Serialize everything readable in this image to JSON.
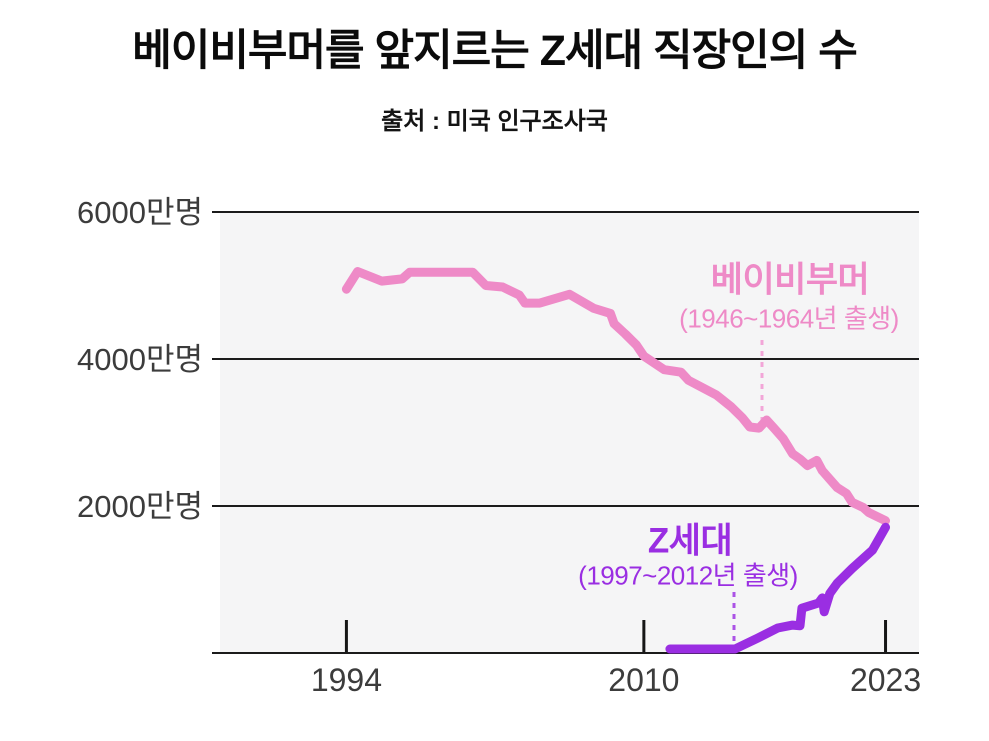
{
  "page": {
    "title": "베이비부머를 앞지르는 Z세대 직장인의 수",
    "source": "출처 : 미국 인구조사국"
  },
  "chart_data": {
    "type": "line",
    "title": "베이비부머를 앞지르는 Z세대 직장인의 수",
    "source": "출처 : 미국 인구조사국",
    "unit": "만명",
    "grid": true,
    "legend_position": "inline-annotations",
    "colors": {
      "page_background": "#ffffff",
      "plot_background": "#f5f5f6",
      "grid_line": "#1b1b1b",
      "axis_text": "#3c3c3c",
      "title_text": "#0b0b0b"
    },
    "x_axis": {
      "range": [
        1987.2,
        2024.8
      ],
      "ticks": [
        1994,
        2010,
        2023
      ],
      "tick_labels": [
        "1994",
        "2010",
        "2023"
      ]
    },
    "y_axis": {
      "range": [
        0,
        6000
      ],
      "ticks": [
        2000,
        4000,
        6000
      ],
      "tick_labels": [
        "2000만명",
        "4000만명",
        "6000만명"
      ]
    },
    "series": [
      {
        "key": "boomer",
        "name": "베이비부머",
        "birth_years": "(1946~1964년 출생)",
        "color": "#ee8ac7",
        "pointer_color": "#f2a6d8",
        "points": [
          [
            1994.0,
            4950
          ],
          [
            1994.6,
            5190
          ],
          [
            1995.9,
            5060
          ],
          [
            1997.0,
            5090
          ],
          [
            1997.4,
            5180
          ],
          [
            2000.8,
            5180
          ],
          [
            2001.5,
            5000
          ],
          [
            2002.4,
            4980
          ],
          [
            2003.3,
            4870
          ],
          [
            2003.6,
            4760
          ],
          [
            2004.4,
            4760
          ],
          [
            2006.0,
            4880
          ],
          [
            2007.3,
            4690
          ],
          [
            2008.2,
            4620
          ],
          [
            2008.4,
            4480
          ],
          [
            2009.0,
            4340
          ],
          [
            2009.6,
            4190
          ],
          [
            2010.0,
            4040
          ],
          [
            2011.1,
            3855
          ],
          [
            2012.0,
            3820
          ],
          [
            2012.4,
            3710
          ],
          [
            2013.9,
            3510
          ],
          [
            2014.7,
            3350
          ],
          [
            2015.3,
            3200
          ],
          [
            2015.7,
            3075
          ],
          [
            2016.2,
            3060
          ],
          [
            2016.6,
            3170
          ],
          [
            2017.0,
            3060
          ],
          [
            2017.5,
            2915
          ],
          [
            2018.0,
            2710
          ],
          [
            2018.4,
            2640
          ],
          [
            2018.8,
            2550
          ],
          [
            2019.3,
            2620
          ],
          [
            2019.6,
            2480
          ],
          [
            2020.4,
            2250
          ],
          [
            2020.9,
            2170
          ],
          [
            2021.2,
            2050
          ],
          [
            2021.8,
            1980
          ],
          [
            2022.1,
            1910
          ],
          [
            2023.0,
            1800
          ]
        ]
      },
      {
        "key": "genz",
        "name": "Z세대",
        "birth_years": "(1997~2012년 출생)",
        "color": "#9a2ee2",
        "pointer_color": "#ab52e6",
        "points": [
          [
            2011.4,
            55
          ],
          [
            2014.9,
            55
          ],
          [
            2016.1,
            200
          ],
          [
            2017.2,
            340
          ],
          [
            2018.0,
            380
          ],
          [
            2018.4,
            370
          ],
          [
            2018.5,
            610
          ],
          [
            2019.4,
            680
          ],
          [
            2019.6,
            750
          ],
          [
            2019.7,
            560
          ],
          [
            2020.0,
            810
          ],
          [
            2020.4,
            950
          ],
          [
            2021.2,
            1150
          ],
          [
            2022.3,
            1400
          ],
          [
            2023.0,
            1710
          ]
        ]
      }
    ]
  }
}
